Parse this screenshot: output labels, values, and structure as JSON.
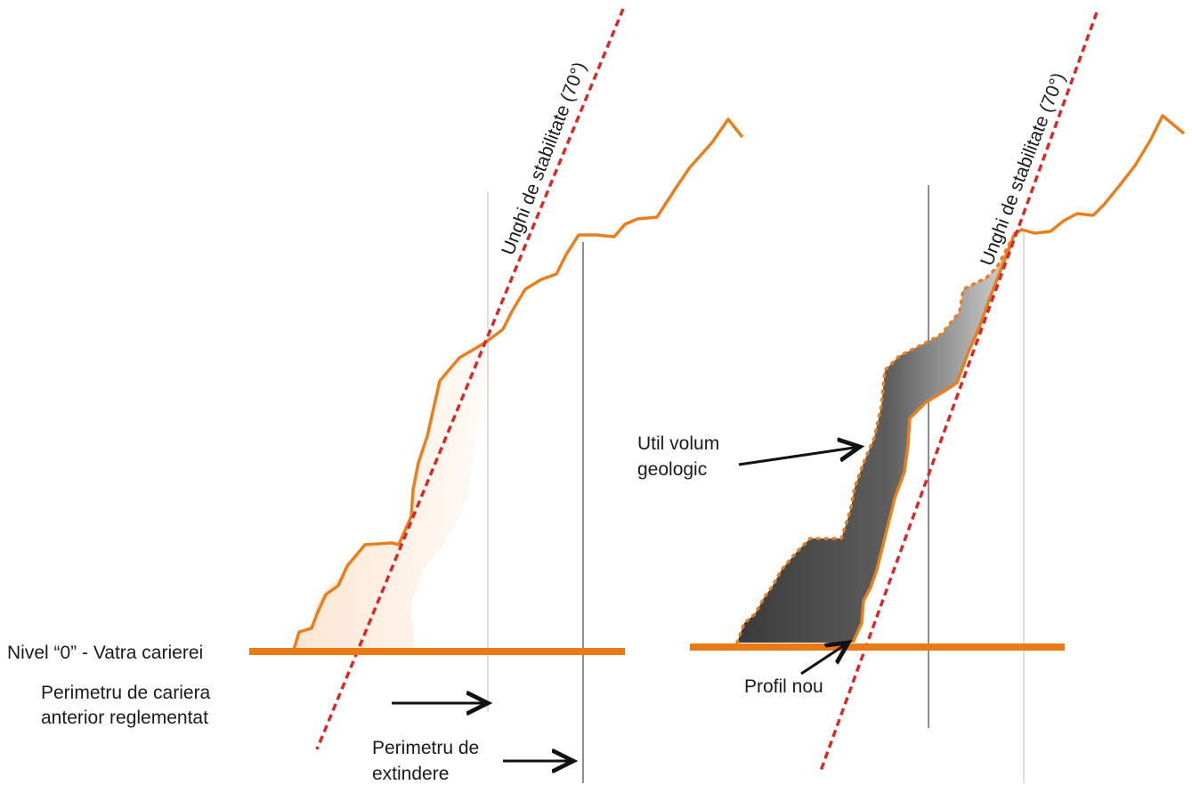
{
  "labels": {
    "stability_angle_left": "Unghi de stabilitate (70°)",
    "stability_angle_right": "Unghi de stabilitate (70°)",
    "level_zero": "Nivel “0” - Vatra carierei",
    "perimeter_previous_line1": "Perimetru de cariera",
    "perimeter_previous_line2": "anterior reglementat",
    "perimeter_extension_line1": "Perimetru de",
    "perimeter_extension_line2": "extindere",
    "useful_volume_line1": "Util volum",
    "useful_volume_line2": "geologic",
    "new_profile": "Profil nou"
  },
  "colors": {
    "terrain_profile": "#e87f1e",
    "stability_line": "#d42a2a",
    "ground_level": "#ea7a16",
    "arrow": "#111111",
    "volume_dark": "#3a3a3a",
    "volume_light": "#d9d9d9",
    "removed_area_fill": "#fbe3cc"
  }
}
